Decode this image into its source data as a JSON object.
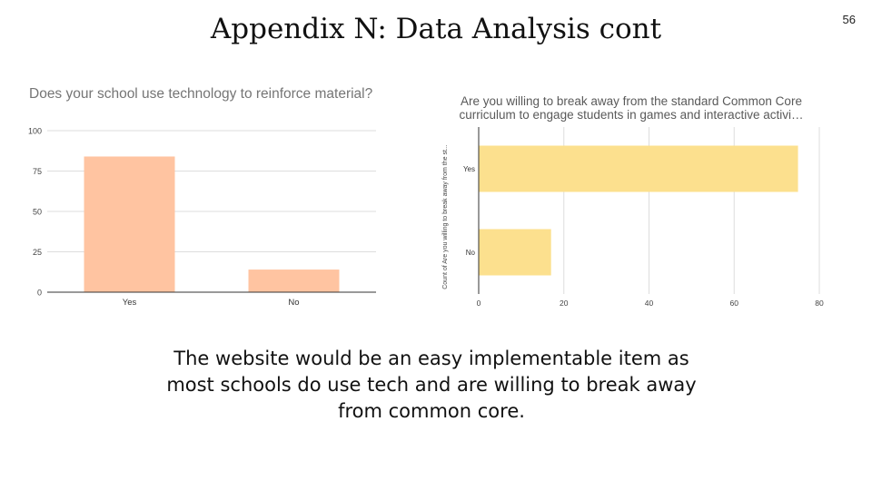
{
  "slide": {
    "title": "Appendix N: Data Analysis cont",
    "page_number": "56",
    "caption": "The website would be an easy implementable item as most schools do use tech and are willing to break away from common core."
  },
  "colors": {
    "chart1_bar": "#FFC4A1",
    "chart2_bar": "#FCE08E",
    "grid": "#DDDDDD",
    "axis": "#333333"
  },
  "chart_data": [
    {
      "type": "bar",
      "orientation": "vertical",
      "title": "Does your school use technology to reinforce material?",
      "categories": [
        "Yes",
        "No"
      ],
      "values": [
        84,
        14
      ],
      "ylim": [
        0,
        100
      ],
      "yticks": [
        0,
        25,
        50,
        75,
        100
      ],
      "xlabel": "",
      "ylabel": "",
      "grid": true,
      "legend": "none"
    },
    {
      "type": "bar",
      "orientation": "horizontal",
      "title_lines": [
        "Are you willing to break away from the standard Common Core",
        "curriculum to engage students in games and interactive activi…"
      ],
      "categories": [
        "Yes",
        "No"
      ],
      "values": [
        75,
        17
      ],
      "xlim": [
        0,
        80
      ],
      "xticks": [
        0,
        20,
        40,
        60,
        80
      ],
      "ylabel": "Count of  Are you willing to break away from the st...",
      "grid": true,
      "legend": "none"
    }
  ]
}
